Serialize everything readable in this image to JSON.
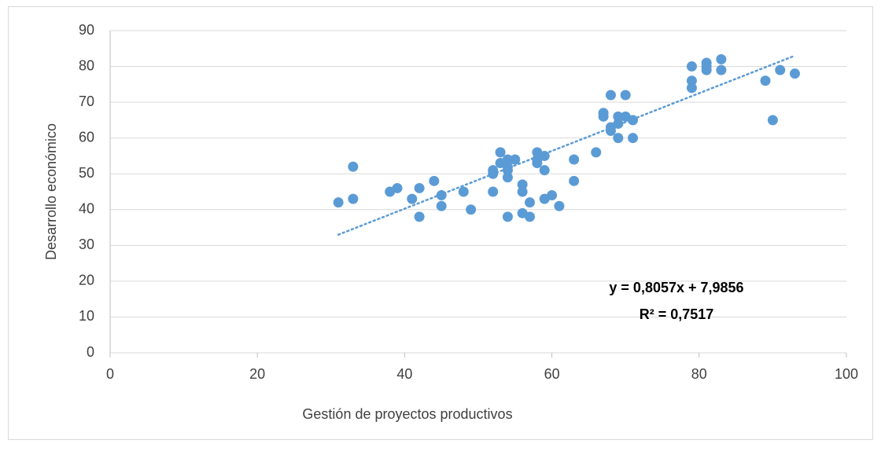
{
  "chart_data": {
    "type": "scatter",
    "x_label": "Gestión de proyectos productivos",
    "y_label": "Desarrollo económico",
    "series": [
      {
        "color": "#5b9bd5",
        "x": [
          31,
          33,
          33,
          38,
          39,
          41,
          42,
          42,
          44,
          45,
          45,
          48,
          49,
          52,
          52,
          52,
          53,
          53,
          54,
          54,
          54,
          54,
          54,
          55,
          56,
          56,
          56,
          57,
          57,
          58,
          58,
          58,
          59,
          59,
          59,
          60,
          61,
          63,
          63,
          66,
          67,
          67,
          68,
          68,
          68,
          69,
          69,
          69,
          70,
          70,
          71,
          71,
          79,
          79,
          79,
          81,
          81,
          81,
          83,
          83,
          89,
          90,
          91,
          93
        ],
        "values": [
          42,
          52,
          43,
          45,
          46,
          43,
          46,
          38,
          48,
          44,
          41,
          45,
          40,
          51,
          50,
          45,
          56,
          53,
          54,
          52,
          51,
          49,
          38,
          54,
          47,
          45,
          39,
          42,
          38,
          56,
          54,
          53,
          55,
          51,
          43,
          44,
          41,
          54,
          48,
          56,
          67,
          66,
          72,
          63,
          62,
          66,
          64,
          60,
          72,
          66,
          65,
          60,
          80,
          76,
          74,
          81,
          80,
          79,
          82,
          79,
          76,
          65,
          79,
          78
        ]
      }
    ],
    "trendline": {
      "x": [
        31,
        93
      ],
      "values": [
        33,
        83
      ],
      "color": "#5b9bd5"
    },
    "annotations": [
      "y = 0,8057x + 7,9856",
      "R² = 0,7517"
    ],
    "xlim": [
      0,
      100
    ],
    "xticks": [
      0,
      20,
      40,
      60,
      80,
      100
    ],
    "ylim": [
      0,
      90
    ],
    "yticks": [
      0,
      10,
      20,
      30,
      40,
      50,
      60,
      70,
      80,
      90
    ],
    "grid": true
  }
}
